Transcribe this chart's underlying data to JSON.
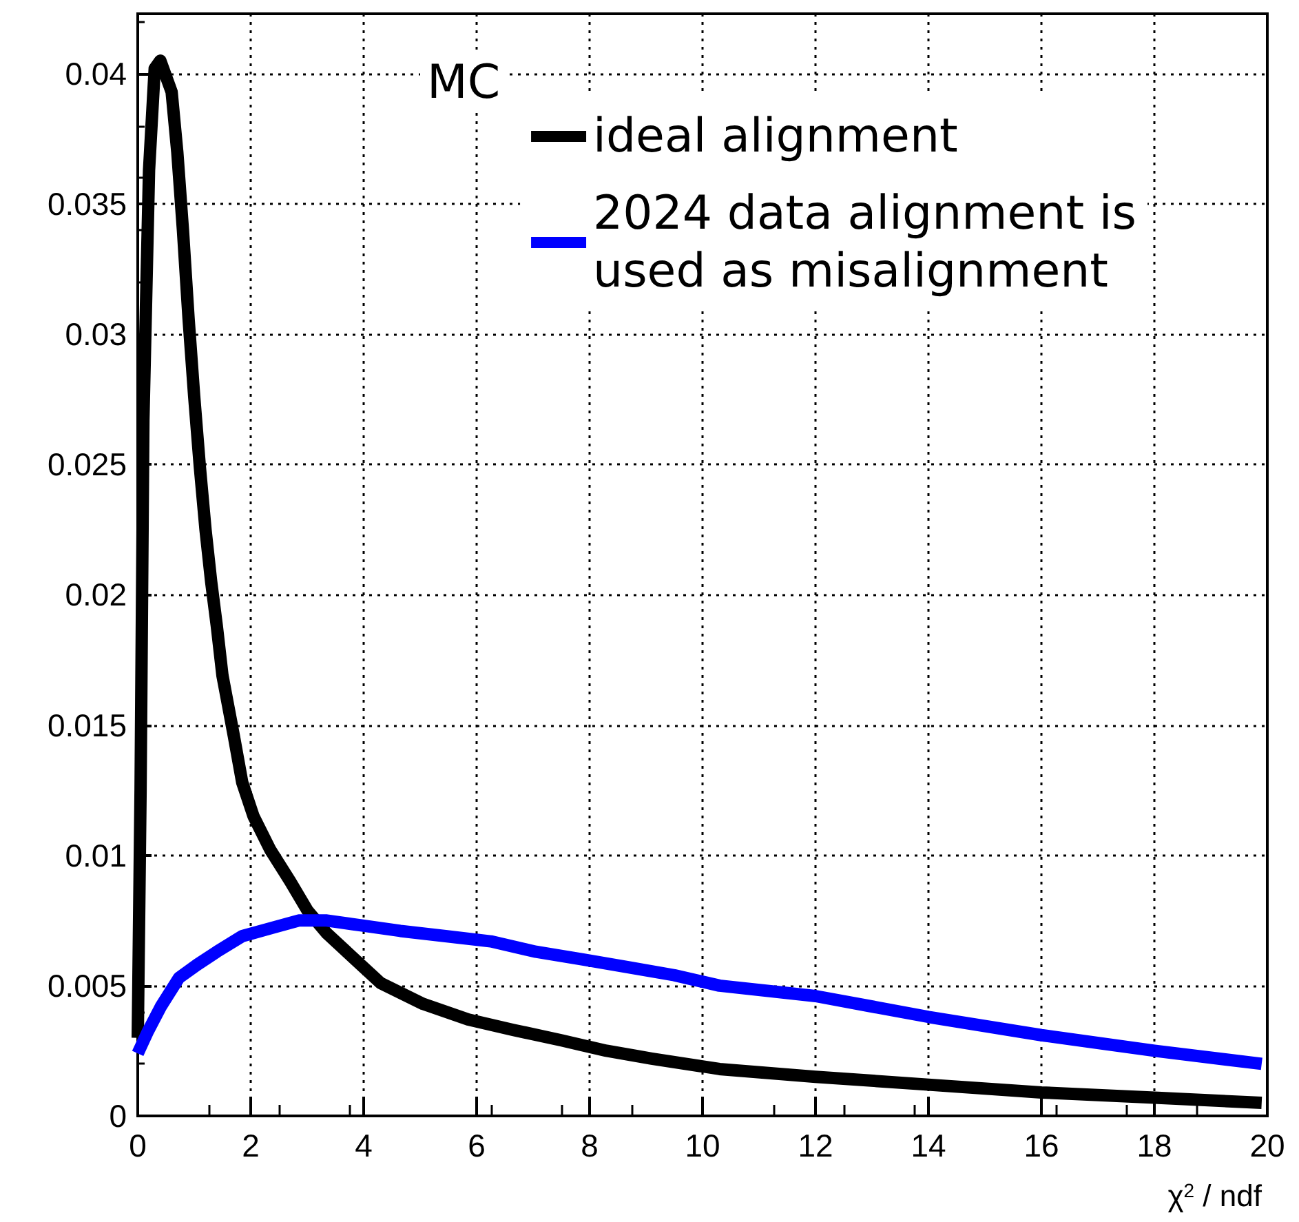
{
  "chart_data": {
    "type": "line",
    "xlabel": "χ$^{2}$ / ndf",
    "legend_title": "MC",
    "xlim": [
      0,
      20
    ],
    "xticks": [
      0,
      2,
      4,
      6,
      8,
      10,
      12,
      14,
      16,
      18,
      20
    ],
    "ylim": [
      0,
      0.0423
    ],
    "yticks": [
      0,
      0.005,
      0.01,
      0.015,
      0.02,
      0.025,
      0.03,
      0.035,
      0.04
    ],
    "grid": true,
    "legend": "top right",
    "marker": "none",
    "line_style": "solid",
    "series": [
      {
        "name": "ideal alignment",
        "color": "#000000",
        "x": [
          0,
          0.05,
          0.1,
          0.2,
          0.3,
          0.4,
          0.6,
          0.7,
          0.8,
          0.9,
          1.0,
          1.1,
          1.2,
          1.3,
          1.4,
          1.5,
          1.7,
          1.85,
          2.05,
          2.35,
          2.7,
          3.0,
          3.35,
          3.85,
          4.3,
          5.05,
          5.85,
          6.65,
          7.5,
          8.3,
          9.1,
          10.3,
          12.0,
          14.0,
          16.0,
          18.0,
          19.9
        ],
        "values": [
          0.003,
          0.0125,
          0.0267,
          0.0363,
          0.0402,
          0.0405,
          0.0393,
          0.037,
          0.034,
          0.0306,
          0.0276,
          0.0249,
          0.0225,
          0.0205,
          0.0188,
          0.0169,
          0.0146,
          0.0128,
          0.0115,
          0.0102,
          0.009,
          0.0079,
          0.007,
          0.006,
          0.0051,
          0.0043,
          0.0037,
          0.0033,
          0.0029,
          0.0025,
          0.0022,
          0.0018,
          0.0015,
          0.0012,
          0.0009,
          0.0007,
          0.0005
        ]
      },
      {
        "name": "2024 data alignment is\nused as misalignment",
        "color": "#0000ff",
        "x": [
          0,
          0.17,
          0.41,
          0.73,
          1.05,
          1.4,
          1.85,
          2.35,
          2.85,
          3.35,
          4.0,
          4.65,
          5.45,
          6.25,
          7.05,
          7.9,
          8.7,
          9.5,
          10.3,
          12.0,
          14.0,
          16.0,
          18.0,
          19.9
        ],
        "values": [
          0.0024,
          0.0032,
          0.0042,
          0.0053,
          0.0058,
          0.0063,
          0.0069,
          0.0072,
          0.0075,
          0.0075,
          0.0073,
          0.0071,
          0.0069,
          0.0067,
          0.0063,
          0.006,
          0.0057,
          0.0054,
          0.005,
          0.0046,
          0.0038,
          0.0031,
          0.0025,
          0.002
        ]
      }
    ]
  }
}
